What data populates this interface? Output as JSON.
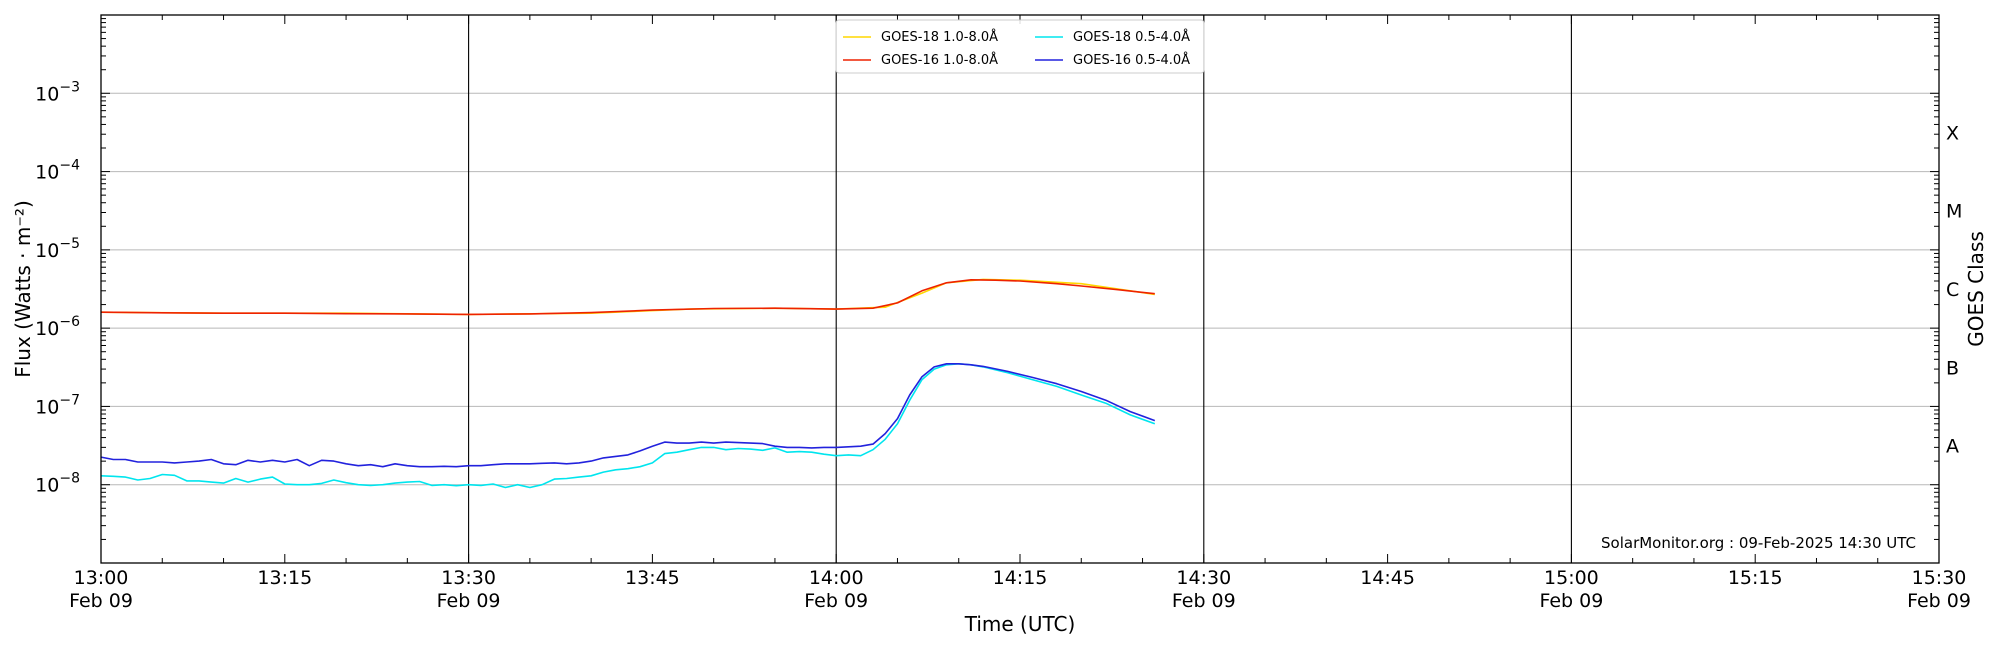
{
  "chart_data": {
    "type": "line",
    "xlabel": "Time (UTC)",
    "ylabel": "Flux (Watts · m⁻²)",
    "right_label": "GOES Class",
    "watermark": "SolarMonitor.org : 09-Feb-2025 14:30 UTC",
    "xlim": [
      "13:00",
      "15:30"
    ],
    "ylim": [
      1e-09,
      0.01
    ],
    "y_scale": "log",
    "grid": "horizontal",
    "legend_position": "top-center",
    "x_ticks": [
      {
        "t": "13:00",
        "top": "13:00",
        "bottom": "Feb 09"
      },
      {
        "t": "13:15",
        "top": "13:15",
        "bottom": ""
      },
      {
        "t": "13:30",
        "top": "13:30",
        "bottom": "Feb 09"
      },
      {
        "t": "13:45",
        "top": "13:45",
        "bottom": ""
      },
      {
        "t": "14:00",
        "top": "14:00",
        "bottom": "Feb 09"
      },
      {
        "t": "14:15",
        "top": "14:15",
        "bottom": ""
      },
      {
        "t": "14:30",
        "top": "14:30",
        "bottom": "Feb 09"
      },
      {
        "t": "14:45",
        "top": "14:45",
        "bottom": ""
      },
      {
        "t": "15:00",
        "top": "15:00",
        "bottom": "Feb 09"
      },
      {
        "t": "15:15",
        "top": "15:15",
        "bottom": ""
      },
      {
        "t": "15:30",
        "top": "15:30",
        "bottom": "Feb 09"
      }
    ],
    "vertical_lines": [
      "13:30",
      "14:00",
      "14:30",
      "15:00"
    ],
    "y_ticks": [
      {
        "value": 1e-08,
        "base": "10",
        "exp": "−8"
      },
      {
        "value": 1e-07,
        "base": "10",
        "exp": "−7"
      },
      {
        "value": 1e-06,
        "base": "10",
        "exp": "−6"
      },
      {
        "value": 1e-05,
        "base": "10",
        "exp": "−5"
      },
      {
        "value": 0.0001,
        "base": "10",
        "exp": "−4"
      },
      {
        "value": 0.001,
        "base": "10",
        "exp": "−3"
      }
    ],
    "goes_classes": [
      {
        "label": "A",
        "value": 1e-08
      },
      {
        "label": "B",
        "value": 1e-07
      },
      {
        "label": "C",
        "value": 1e-06
      },
      {
        "label": "M",
        "value": 1e-05
      },
      {
        "label": "X",
        "value": 0.0001
      }
    ],
    "series": [
      {
        "name": "GOES-18 1.0-8.0Å",
        "color": "#ffd700",
        "x": [
          "13:00",
          "13:10",
          "13:20",
          "13:30",
          "13:40",
          "13:48",
          "13:55",
          "14:00",
          "14:04",
          "14:07",
          "14:09",
          "14:12",
          "14:15",
          "14:20",
          "14:26"
        ],
        "y": [
          1.6e-06,
          1.55e-06,
          1.55e-06,
          1.5e-06,
          1.55e-06,
          1.75e-06,
          1.8e-06,
          1.75e-06,
          1.85e-06,
          2.8e-06,
          3.8e-06,
          4.2e-06,
          4.1e-06,
          3.7e-06,
          2.7e-06
        ]
      },
      {
        "name": "GOES-16 1.0-8.0Å",
        "color": "#ee2200",
        "x": [
          "13:00",
          "13:05",
          "13:10",
          "13:15",
          "13:20",
          "13:25",
          "13:30",
          "13:35",
          "13:40",
          "13:45",
          "13:50",
          "13:55",
          "14:00",
          "14:03",
          "14:05",
          "14:07",
          "14:09",
          "14:11",
          "14:13",
          "14:15",
          "14:18",
          "14:20",
          "14:23",
          "14:26"
        ],
        "y": [
          1.6e-06,
          1.57e-06,
          1.55e-06,
          1.55e-06,
          1.53e-06,
          1.52e-06,
          1.5e-06,
          1.52e-06,
          1.58e-06,
          1.7e-06,
          1.78e-06,
          1.8e-06,
          1.75e-06,
          1.8e-06,
          2.1e-06,
          3e-06,
          3.8e-06,
          4.15e-06,
          4.1e-06,
          4e-06,
          3.7e-06,
          3.45e-06,
          3.1e-06,
          2.75e-06
        ]
      },
      {
        "name": "GOES-18 0.5-4.0Å",
        "color": "#00e5ee",
        "x": [
          "13:00",
          "13:01",
          "13:02",
          "13:03",
          "13:04",
          "13:05",
          "13:06",
          "13:07",
          "13:08",
          "13:09",
          "13:10",
          "13:11",
          "13:12",
          "13:13",
          "13:14",
          "13:15",
          "13:16",
          "13:17",
          "13:18",
          "13:19",
          "13:20",
          "13:21",
          "13:22",
          "13:23",
          "13:24",
          "13:25",
          "13:26",
          "13:27",
          "13:28",
          "13:29",
          "13:30",
          "13:31",
          "13:32",
          "13:33",
          "13:34",
          "13:35",
          "13:36",
          "13:37",
          "13:38",
          "13:39",
          "13:40",
          "13:41",
          "13:42",
          "13:43",
          "13:44",
          "13:45",
          "13:46",
          "13:47",
          "13:48",
          "13:49",
          "13:50",
          "13:51",
          "13:52",
          "13:53",
          "13:54",
          "13:55",
          "13:56",
          "13:57",
          "13:58",
          "13:59",
          "14:00",
          "14:01",
          "14:02",
          "14:03",
          "14:04",
          "14:05",
          "14:06",
          "14:07",
          "14:08",
          "14:09",
          "14:10",
          "14:11",
          "14:12",
          "14:14",
          "14:16",
          "14:18",
          "14:20",
          "14:22",
          "14:24",
          "14:26"
        ],
        "y": [
          1.3e-08,
          1.28e-08,
          1.25e-08,
          1.15e-08,
          1.2e-08,
          1.35e-08,
          1.32e-08,
          1.12e-08,
          1.12e-08,
          1.08e-08,
          1.05e-08,
          1.2e-08,
          1.08e-08,
          1.18e-08,
          1.25e-08,
          1.02e-08,
          1e-08,
          1e-08,
          1.04e-08,
          1.15e-08,
          1.06e-08,
          1e-08,
          9.8e-09,
          1e-08,
          1.05e-08,
          1.08e-08,
          1.1e-08,
          9.8e-09,
          1e-08,
          9.7e-09,
          1e-08,
          9.8e-09,
          1.02e-08,
          9.2e-09,
          1e-08,
          9.2e-09,
          1e-08,
          1.18e-08,
          1.2e-08,
          1.25e-08,
          1.3e-08,
          1.45e-08,
          1.55e-08,
          1.6e-08,
          1.7e-08,
          1.9e-08,
          2.5e-08,
          2.6e-08,
          2.8e-08,
          3e-08,
          3e-08,
          2.8e-08,
          2.9e-08,
          2.85e-08,
          2.75e-08,
          2.95e-08,
          2.6e-08,
          2.65e-08,
          2.6e-08,
          2.45e-08,
          2.35e-08,
          2.4e-08,
          2.35e-08,
          2.8e-08,
          3.8e-08,
          6e-08,
          1.2e-07,
          2.2e-07,
          3e-07,
          3.4e-07,
          3.5e-07,
          3.4e-07,
          3.2e-07,
          2.7e-07,
          2.2e-07,
          1.8e-07,
          1.4e-07,
          1.1e-07,
          7.8e-08,
          6e-08
        ]
      },
      {
        "name": "GOES-16 0.5-4.0Å",
        "color": "#2222dd",
        "x": [
          "13:00",
          "13:01",
          "13:02",
          "13:03",
          "13:04",
          "13:05",
          "13:06",
          "13:07",
          "13:08",
          "13:09",
          "13:10",
          "13:11",
          "13:12",
          "13:13",
          "13:14",
          "13:15",
          "13:16",
          "13:17",
          "13:18",
          "13:19",
          "13:20",
          "13:21",
          "13:22",
          "13:23",
          "13:24",
          "13:25",
          "13:26",
          "13:27",
          "13:28",
          "13:29",
          "13:30",
          "13:31",
          "13:32",
          "13:33",
          "13:34",
          "13:35",
          "13:36",
          "13:37",
          "13:38",
          "13:39",
          "13:40",
          "13:41",
          "13:42",
          "13:43",
          "13:44",
          "13:45",
          "13:46",
          "13:47",
          "13:48",
          "13:49",
          "13:50",
          "13:51",
          "13:52",
          "13:53",
          "13:54",
          "13:55",
          "13:56",
          "13:57",
          "13:58",
          "13:59",
          "14:00",
          "14:01",
          "14:02",
          "14:03",
          "14:04",
          "14:05",
          "14:06",
          "14:07",
          "14:08",
          "14:09",
          "14:10",
          "14:11",
          "14:12",
          "14:14",
          "14:16",
          "14:18",
          "14:20",
          "14:22",
          "14:24",
          "14:26"
        ],
        "y": [
          2.25e-08,
          2.1e-08,
          2.1e-08,
          1.95e-08,
          1.95e-08,
          1.95e-08,
          1.9e-08,
          1.95e-08,
          2e-08,
          2.1e-08,
          1.85e-08,
          1.8e-08,
          2.05e-08,
          1.95e-08,
          2.05e-08,
          1.95e-08,
          2.1e-08,
          1.75e-08,
          2.05e-08,
          2e-08,
          1.85e-08,
          1.75e-08,
          1.8e-08,
          1.7e-08,
          1.85e-08,
          1.75e-08,
          1.7e-08,
          1.7e-08,
          1.72e-08,
          1.7e-08,
          1.75e-08,
          1.75e-08,
          1.8e-08,
          1.85e-08,
          1.85e-08,
          1.85e-08,
          1.88e-08,
          1.9e-08,
          1.85e-08,
          1.9e-08,
          2e-08,
          2.2e-08,
          2.3e-08,
          2.4e-08,
          2.7e-08,
          3.1e-08,
          3.5e-08,
          3.4e-08,
          3.4e-08,
          3.5e-08,
          3.4e-08,
          3.5e-08,
          3.45e-08,
          3.4e-08,
          3.35e-08,
          3.1e-08,
          3e-08,
          3e-08,
          2.95e-08,
          3e-08,
          3e-08,
          3.05e-08,
          3.1e-08,
          3.3e-08,
          4.5e-08,
          7e-08,
          1.4e-07,
          2.4e-07,
          3.2e-07,
          3.5e-07,
          3.5e-07,
          3.4e-07,
          3.25e-07,
          2.8e-07,
          2.35e-07,
          1.95e-07,
          1.55e-07,
          1.2e-07,
          8.6e-08,
          6.6e-08
        ]
      }
    ]
  }
}
